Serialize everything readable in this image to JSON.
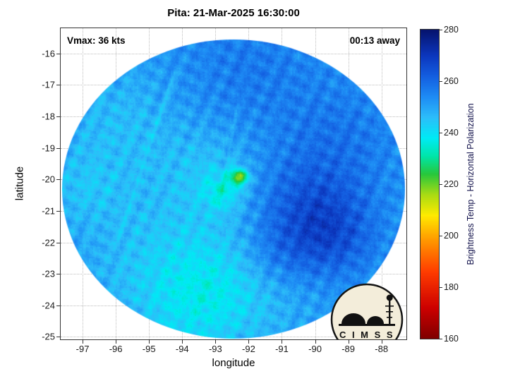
{
  "title": "Pita: 21-Mar-2025 16:30:00",
  "annotations": {
    "vmax": "Vmax: 36 kts",
    "away": "00:13 away"
  },
  "axes": {
    "xlabel": "longitude",
    "ylabel": "latitude",
    "xlim": [
      -97.66,
      -87.25
    ],
    "ylim": [
      -25.08,
      -15.2
    ],
    "xticks": [
      -97,
      -96,
      -95,
      -94,
      -93,
      -92,
      -91,
      -90,
      -89,
      -88
    ],
    "yticks": [
      -16,
      -17,
      -18,
      -19,
      -20,
      -21,
      -22,
      -23,
      -24,
      -25
    ]
  },
  "colorbar": {
    "label": "Brightness Temp - Horizontal Polarization",
    "min": 160,
    "max": 280,
    "ticks": [
      160,
      180,
      200,
      220,
      240,
      260,
      280
    ],
    "colormap": [
      [
        160,
        [
          127,
          0,
          0
        ]
      ],
      [
        172,
        [
          205,
          0,
          0
        ]
      ],
      [
        186,
        [
          255,
          60,
          0
        ]
      ],
      [
        198,
        [
          255,
          150,
          0
        ]
      ],
      [
        208,
        [
          255,
          235,
          0
        ]
      ],
      [
        216,
        [
          170,
          220,
          20
        ]
      ],
      [
        224,
        [
          40,
          200,
          60
        ]
      ],
      [
        231,
        [
          0,
          230,
          170
        ]
      ],
      [
        238,
        [
          0,
          235,
          245
        ]
      ],
      [
        246,
        [
          45,
          190,
          250
        ]
      ],
      [
        254,
        [
          30,
          140,
          245
        ]
      ],
      [
        262,
        [
          20,
          95,
          225
        ]
      ],
      [
        270,
        [
          12,
          55,
          190
        ]
      ],
      [
        280,
        [
          6,
          20,
          110
        ]
      ]
    ]
  },
  "chart_data": {
    "type": "heatmap",
    "title": "Pita: 21-Mar-2025 16:30:00",
    "xlabel": "longitude",
    "ylabel": "latitude",
    "description": "Circular microwave-imager swath of brightness temperature (horizontal polarization) around tropical cyclone Pita; field mostly 235-270 K, cyan patches ~238-245 K, dark blue region near (-90,-21) ~264 K, small bright yellow-green spot near (-92.3,-19.9) ~220 K.",
    "swath": {
      "center_lon": -92.45,
      "center_lat": -20.35,
      "radius_deg": 5.1
    },
    "background_k": 252,
    "features": [
      [
        -90.2,
        -21.0,
        1.2,
        12
      ],
      [
        -89.5,
        -21.9,
        0.9,
        8
      ],
      [
        -89.2,
        -18.6,
        1.2,
        5
      ],
      [
        -92.0,
        -16.4,
        1.6,
        5
      ],
      [
        -95.9,
        -18.3,
        1.4,
        -6
      ],
      [
        -94.6,
        -22.7,
        1.7,
        -7
      ],
      [
        -92.2,
        -23.2,
        1.5,
        -7
      ],
      [
        -93.1,
        -19.7,
        1.0,
        -6
      ],
      [
        -92.3,
        -19.9,
        0.18,
        -30
      ],
      [
        -92.8,
        -20.35,
        0.4,
        -10
      ],
      [
        -97.0,
        -20.3,
        0.8,
        -5
      ],
      [
        -93.6,
        -24.1,
        1.1,
        -6
      ],
      [
        -91.2,
        -22.4,
        0.8,
        6
      ]
    ],
    "seams": [
      {
        "from": [
          -94.25,
          -16.55
        ],
        "to": [
          -95.95,
          -21.9
        ],
        "width": 0.09,
        "dk": -4
      },
      {
        "from": [
          -92.35,
          -17.6
        ],
        "to": [
          -92.95,
          -21.1
        ],
        "width": 0.07,
        "dk": -3.5
      }
    ]
  },
  "logo": {
    "text": "C I M S S"
  }
}
